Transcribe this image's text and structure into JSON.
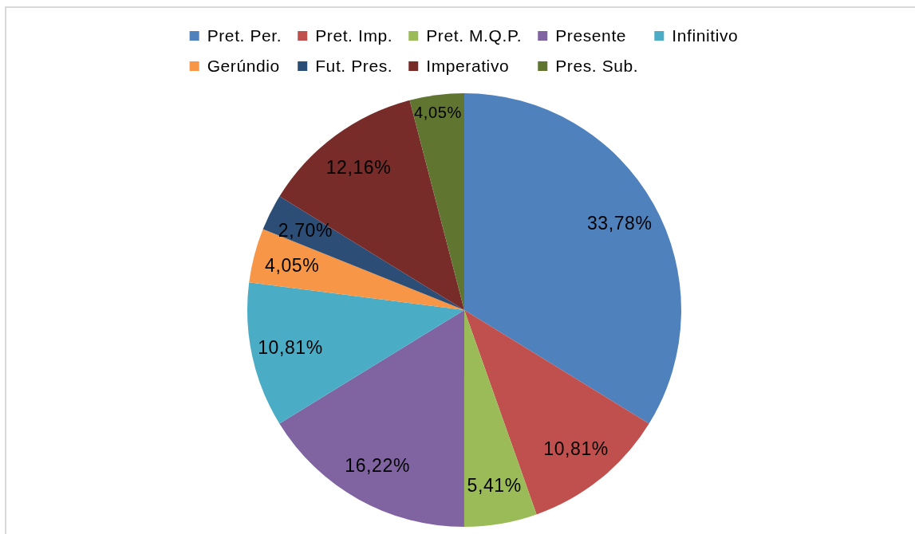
{
  "chart_data": {
    "type": "pie",
    "categories": [
      "Pret. Per.",
      "Pret. Imp.",
      "Pret. M.Q.P.",
      "Presente",
      "Infinitivo",
      "Gerúndio",
      "Fut. Pres.",
      "Imperativo",
      "Pres. Sub."
    ],
    "values": [
      33.78,
      10.81,
      5.41,
      16.22,
      10.81,
      4.05,
      2.7,
      12.16,
      4.05
    ],
    "colors": [
      "#4f81bd",
      "#c0504d",
      "#9bbb59",
      "#8064a2",
      "#4bacc6",
      "#f79646",
      "#2c4d75",
      "#772c2a",
      "#5f7530"
    ],
    "value_labels": [
      "33,78%",
      "10,81%",
      "5,41%",
      "16,22%",
      "10,81%",
      "4,05%",
      "2,70%",
      "12,16%",
      "4,05%"
    ],
    "legend": "top"
  }
}
